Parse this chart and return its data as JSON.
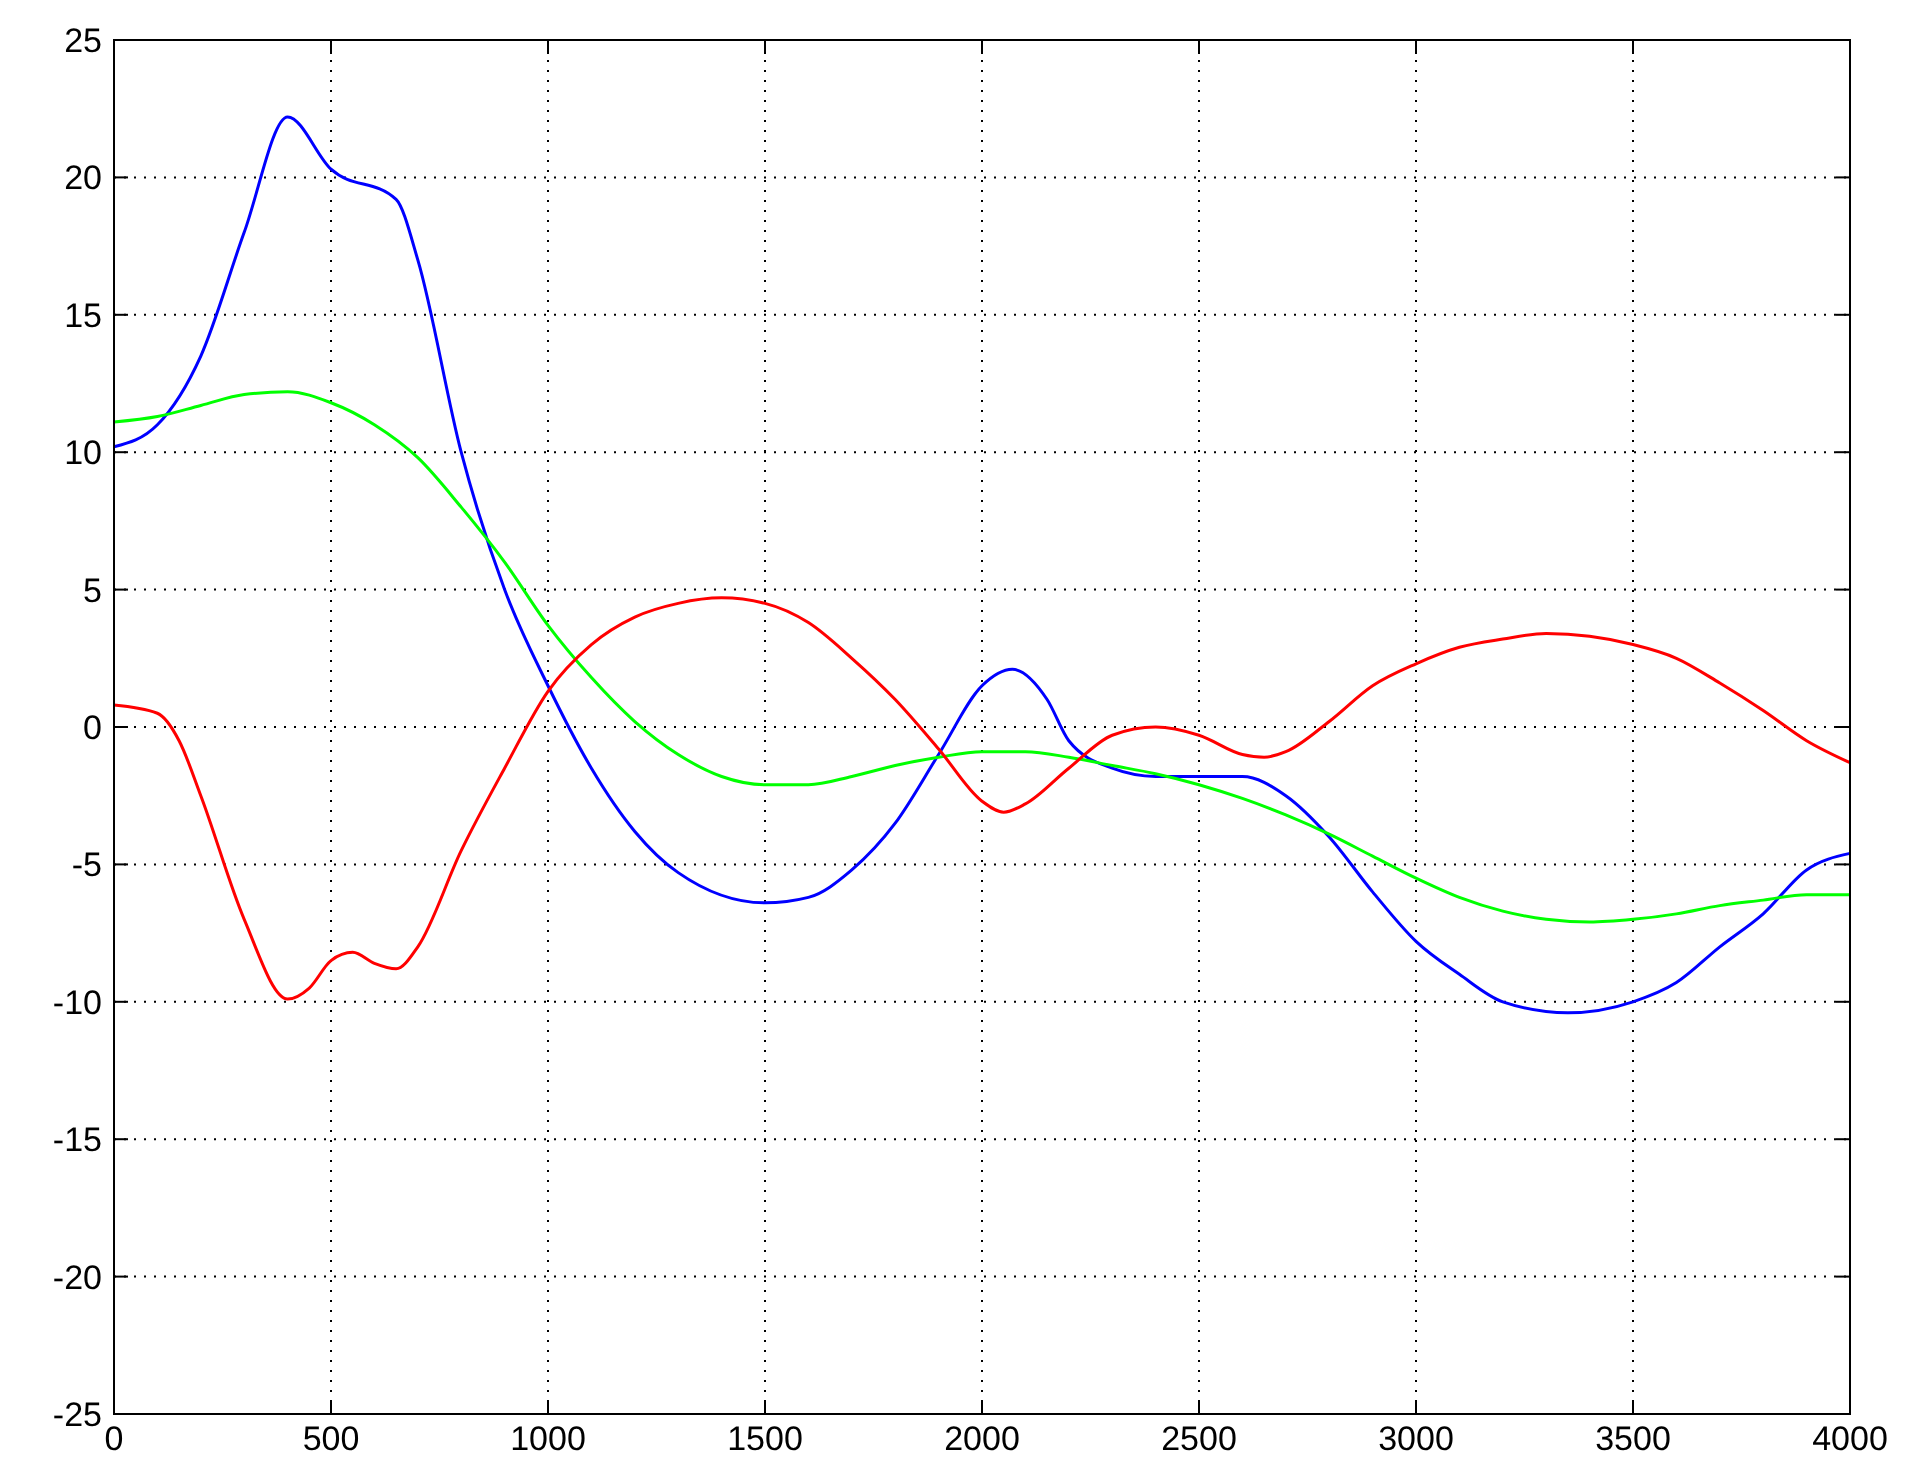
{
  "chart_data": {
    "type": "line",
    "xlim": [
      0,
      4000
    ],
    "ylim": [
      -25,
      25
    ],
    "xticks": [
      0,
      500,
      1000,
      1500,
      2000,
      2500,
      3000,
      3500,
      4000
    ],
    "yticks": [
      -25,
      -20,
      -15,
      -10,
      -5,
      0,
      5,
      10,
      15,
      20,
      25
    ],
    "grid": true,
    "line_style": "solid",
    "series": [
      {
        "color": "#0000ff",
        "x": [
          0,
          100,
          200,
          300,
          400,
          500,
          650,
          700,
          800,
          900,
          1000,
          1100,
          1200,
          1300,
          1500,
          1600,
          1700,
          1800,
          1900,
          2000,
          2070,
          2150,
          2200,
          2300,
          2400,
          2600,
          2700,
          2800,
          2900,
          3000,
          3100,
          3200,
          3350,
          3500,
          3600,
          3700,
          3800,
          3900,
          4000
        ],
        "values": [
          10.2,
          11,
          13.5,
          18,
          22.2,
          20.3,
          19.2,
          17,
          10,
          5,
          1.5,
          -1.5,
          -3.8,
          -5.3,
          -6.4,
          -6.2,
          -5.2,
          -3.5,
          -1,
          1.5,
          2.1,
          1,
          -0.5,
          -1.5,
          -1.8,
          -1.8,
          -2.5,
          -4,
          -6,
          -7.8,
          -9,
          -10,
          -10.4,
          -10,
          -9.3,
          -8,
          -6.8,
          -5.2,
          -4.6
        ]
      },
      {
        "color": "#00ff00",
        "x": [
          0,
          100,
          200,
          300,
          400,
          500,
          600,
          700,
          800,
          900,
          1000,
          1100,
          1200,
          1300,
          1400,
          1500,
          1600,
          1700,
          1800,
          1900,
          2000,
          2100,
          2200,
          2300,
          2400,
          2500,
          2600,
          2700,
          2800,
          2900,
          3000,
          3100,
          3200,
          3300,
          3400,
          3500,
          3600,
          3700,
          3800,
          3900,
          4000
        ],
        "values": [
          11.1,
          11.3,
          11.7,
          12.1,
          12.2,
          11.8,
          11,
          9.8,
          8,
          6,
          3.7,
          1.8,
          0.2,
          -1,
          -1.8,
          -2.1,
          -2.1,
          -1.8,
          -1.4,
          -1.1,
          -0.9,
          -0.9,
          -1.1,
          -1.4,
          -1.7,
          -2.1,
          -2.6,
          -3.2,
          -3.9,
          -4.7,
          -5.5,
          -6.2,
          -6.7,
          -7,
          -7.1,
          -7,
          -6.8,
          -6.5,
          -6.3,
          -6.1,
          -6.1
        ]
      },
      {
        "color": "#ff0000",
        "x": [
          0,
          100,
          150,
          200,
          300,
          400,
          450,
          500,
          550,
          600,
          650,
          700,
          800,
          900,
          1000,
          1100,
          1200,
          1300,
          1400,
          1500,
          1600,
          1700,
          1800,
          1900,
          2000,
          2050,
          2100,
          2200,
          2300,
          2400,
          2500,
          2600,
          2650,
          2700,
          2800,
          2900,
          3000,
          3100,
          3200,
          3300,
          3400,
          3500,
          3600,
          3700,
          3800,
          3900,
          4000
        ],
        "values": [
          0.8,
          0.5,
          -0.5,
          -2.5,
          -7,
          -9.9,
          -9.5,
          -8.5,
          -8.2,
          -8.6,
          -8.8,
          -8,
          -4.5,
          -1.5,
          1.3,
          3,
          4,
          4.5,
          4.7,
          4.5,
          3.8,
          2.5,
          1,
          -0.8,
          -2.7,
          -3.1,
          -2.8,
          -1.5,
          -0.3,
          0,
          -0.3,
          -1,
          -1.1,
          -0.9,
          0.2,
          1.5,
          2.3,
          2.9,
          3.2,
          3.4,
          3.3,
          3,
          2.5,
          1.6,
          0.6,
          -0.5,
          -1.3
        ]
      }
    ]
  }
}
